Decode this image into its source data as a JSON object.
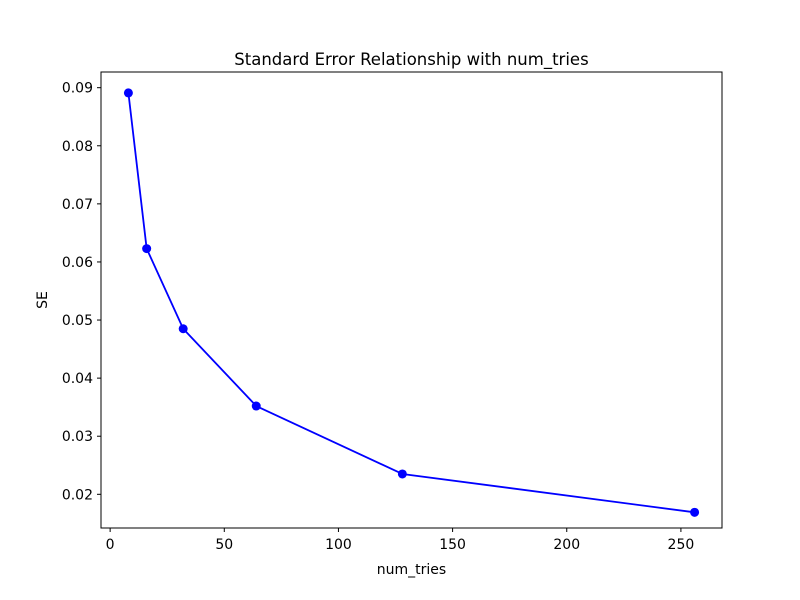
{
  "figure": {
    "background": "#ffffff",
    "text_color": "#000000",
    "spine_color": "#000000"
  },
  "chart_data": {
    "type": "line",
    "title": "Standard Error Relationship with num_tries",
    "xlabel": "num_tries",
    "ylabel": "SE",
    "x": [
      8,
      16,
      32,
      64,
      128,
      256
    ],
    "y": [
      0.0891,
      0.0623,
      0.0485,
      0.0352,
      0.0235,
      0.0169
    ],
    "line_color": "#0000ff",
    "marker": "circle",
    "marker_color": "#0000ff",
    "xlim": [
      -4,
      268
    ],
    "ylim": [
      0.0142,
      0.0927
    ],
    "xticks": [
      0,
      50,
      100,
      150,
      200,
      250
    ],
    "ytick_labels": [
      "0.02",
      "0.03",
      "0.04",
      "0.05",
      "0.06",
      "0.07",
      "0.08",
      "0.09"
    ],
    "yticks": [
      0.02,
      0.03,
      0.04,
      0.05,
      0.06,
      0.07,
      0.08,
      0.09
    ],
    "grid": false,
    "legend": false
  }
}
